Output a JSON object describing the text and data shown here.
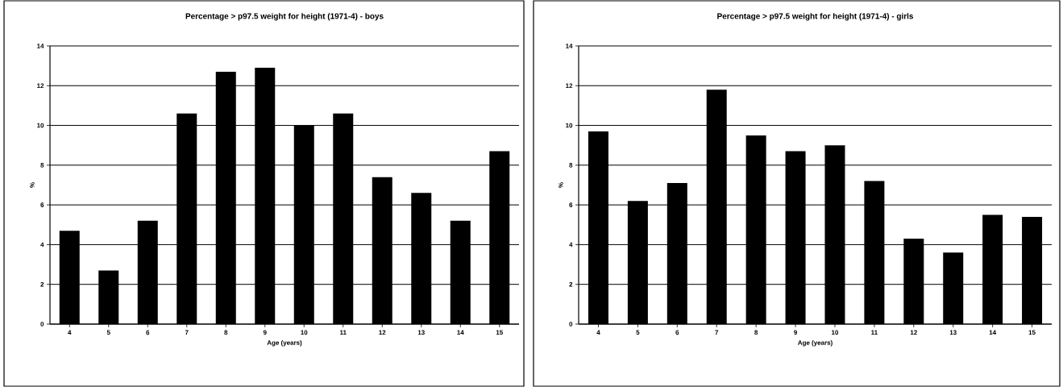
{
  "chart_data": [
    {
      "type": "bar",
      "title": "Percentage > p97.5 weight for height (1971-4) - boys",
      "xlabel": "Age (years)",
      "ylabel": "%",
      "categories": [
        "4",
        "5",
        "6",
        "7",
        "8",
        "9",
        "10",
        "11",
        "12",
        "13",
        "14",
        "15"
      ],
      "values": [
        4.7,
        2.7,
        5.2,
        10.6,
        12.7,
        12.9,
        10.0,
        10.6,
        7.4,
        6.6,
        5.2,
        8.7
      ],
      "color": "#000000",
      "ylim": [
        0,
        14
      ],
      "yticks": [
        0,
        2,
        4,
        6,
        8,
        10,
        12,
        14
      ],
      "grid": "y"
    },
    {
      "type": "bar",
      "title": "Percentage > p97.5 weight for height (1971-4) - girls",
      "xlabel": "Age (years)",
      "ylabel": "%",
      "categories": [
        "4",
        "5",
        "6",
        "7",
        "8",
        "9",
        "10",
        "11",
        "12",
        "13",
        "14",
        "15"
      ],
      "values": [
        9.7,
        6.2,
        7.1,
        11.8,
        9.5,
        8.7,
        9.0,
        7.2,
        4.3,
        3.6,
        5.5,
        5.4
      ],
      "color": "#000000",
      "ylim": [
        0,
        14
      ],
      "yticks": [
        0,
        2,
        4,
        6,
        8,
        10,
        12,
        14
      ],
      "grid": "y"
    }
  ]
}
